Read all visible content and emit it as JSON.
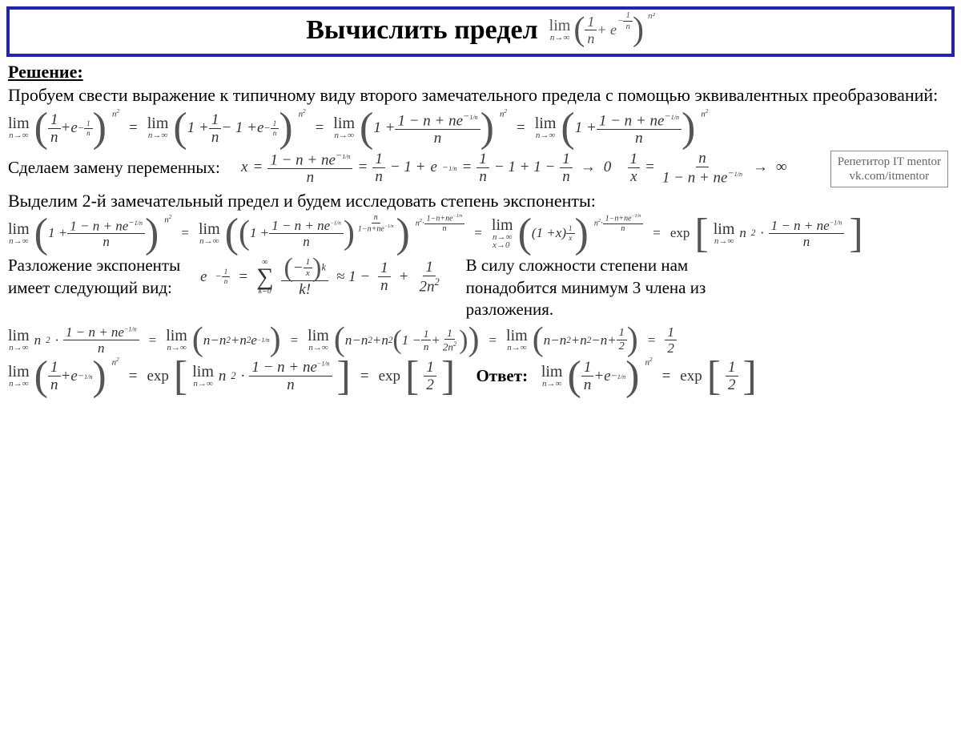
{
  "colors": {
    "border": "#2323b0",
    "text": "#000000",
    "math": "#333333",
    "credit_border": "#888888",
    "credit_text": "#666666",
    "background": "#ffffff"
  },
  "typography": {
    "title_fontsize": 34,
    "body_fontsize": 22,
    "math_fontsize": 19,
    "credit_fontsize": 15,
    "font_family_text": "Georgia, serif",
    "font_family_math": "Times New Roman, serif"
  },
  "title": "Вычислить предел",
  "title_math": {
    "limit_op": "lim",
    "limit_sub": "n→∞",
    "inner": "1/n + e^(−1/n)",
    "exponent": "n²"
  },
  "section_heading": "Решение:",
  "intro_text": "Пробуем свести выражение к типичному виду второго замечательного предела с помощью эквивалентных преобразований:",
  "credit": {
    "line1": "Репетитор IT mentor",
    "line2": "vk.com/itmentor"
  },
  "line1": {
    "limit_op": "lim",
    "limit_sub": "n→∞",
    "step1_inner": "1/n + e^(−1/n)",
    "step2_inner": "1 + 1/n − 1 + e^(−1/n)",
    "step3_num": "1 − n + ne^(−1/n)",
    "step3_inner_prefix": "1 +",
    "step3_den": "n",
    "exponent": "n²",
    "eq": "="
  },
  "line2": {
    "label": "Сделаем замену переменных:",
    "x_eq": "x =",
    "sub_num": "1 − n + ne^(−1/n)",
    "sub_den": "n",
    "chain2": "1/n − 1 + e^(−1/n)",
    "chain3": "1/n − 1 + 1 − 1/n",
    "arrow0": "→ 0",
    "recip": "1/x =",
    "recip_num": "n",
    "recip_den": "1 − n + ne^(−1/n)",
    "arrow_inf": "→ ∞"
  },
  "line3_text": "Выделим 2-й замечательный предел и будем исследовать степень экспоненты:",
  "line4": {
    "limit_op": "lim",
    "limit_sub": "n→∞",
    "limit_sub2": "x→0",
    "inner_prefix": "1 +",
    "inner_num": "1 − n + ne^(−1/n)",
    "inner_den": "n",
    "exp_n2": "n²",
    "compound_exp_outer_num": "n² · (1−n+ne^(−1/n))",
    "compound_exp_outer_den": "n",
    "compound_exp_inner_num": "n",
    "compound_exp_inner_den": "1−n+ne^(−1/n)",
    "x_form": "(1 + x)^(1/x)",
    "exp_word": "exp",
    "exp_arg_prefix": "lim",
    "exp_arg_sub": "n→∞",
    "exp_arg_n2": "n² ·",
    "exp_arg_num": "1 − n + ne^(−1/n)",
    "exp_arg_den": "n"
  },
  "line5": {
    "label1": "Разложение экспоненты",
    "label2": "имеет следующий вид:",
    "lhs": "e^(−1/n)",
    "sum_lower": "k=0",
    "sum_upper": "∞",
    "summand_num": "(−1/x)^k",
    "summand_den": "k!",
    "approx": "≈ 1 − 1/n + 1/(2n²)",
    "rhs_text1": "В силу сложности степени нам",
    "rhs_text2": "понадобится минимум 3 члена из",
    "rhs_text3": "разложения."
  },
  "line6": {
    "limit_op": "lim",
    "limit_sub": "n→∞",
    "lhs_prefix": "n² ·",
    "lhs_num": "1 − n + ne^(−1/n)",
    "lhs_den": "n",
    "step2_inner": "n − n² + n²e^(−1/n)",
    "step3_inner": "n − n² + n²(1 − 1/n + 1/(2n²))",
    "step4_inner": "n − n² + n² − n + 1/2",
    "result": "1/2"
  },
  "line7": {
    "limit_op": "lim",
    "limit_sub": "n→∞",
    "lhs_inner": "1/n + e^(−1/n)",
    "lhs_exp": "n²",
    "exp_word": "exp",
    "mid_prefix": "lim",
    "mid_sub": "n→∞",
    "mid_n2": "n² ·",
    "mid_num": "1 − n + ne^(−1/n)",
    "mid_den": "n",
    "exp_half": "1/2",
    "answer_label": "Ответ:",
    "answer_inner": "1/n + e^(−1/n)",
    "answer_exp": "n²",
    "answer_rhs": "exp[1/2]"
  }
}
